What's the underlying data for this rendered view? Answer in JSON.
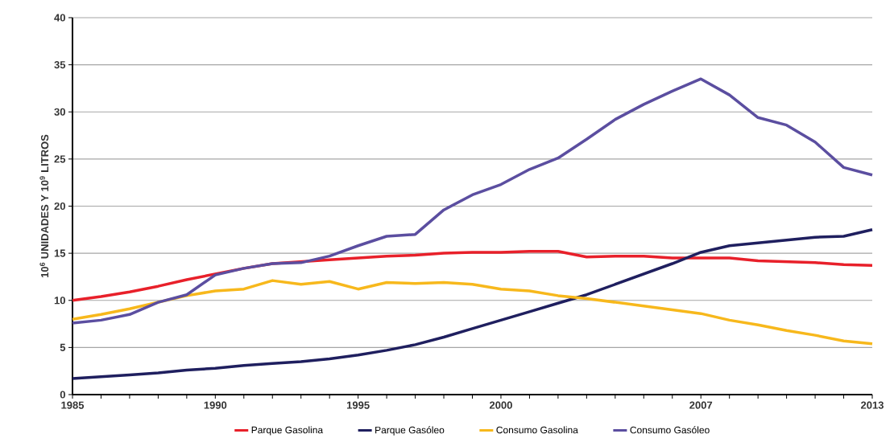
{
  "chart_data": {
    "type": "line",
    "ylabel": "10$^{6}$ UNIDADES Y 10$^{9}$ LITROS",
    "x": [
      1985,
      1986,
      1987,
      1988,
      1989,
      1990,
      1991,
      1992,
      1993,
      1994,
      1995,
      1996,
      1997,
      1998,
      1999,
      2000,
      2001,
      2002,
      2003,
      2004,
      2005,
      2006,
      2007,
      2008,
      2009,
      2010,
      2011,
      2012,
      2013
    ],
    "series": [
      {
        "name": "Parque Gasolina",
        "color": "#e8202a",
        "values": [
          10.0,
          10.4,
          10.9,
          11.5,
          12.2,
          12.8,
          13.4,
          13.9,
          14.1,
          14.3,
          14.5,
          14.7,
          14.8,
          15.0,
          15.1,
          15.1,
          15.2,
          15.2,
          14.6,
          14.7,
          14.7,
          14.5,
          14.5,
          14.5,
          14.2,
          14.1,
          14.0,
          13.8,
          13.7
        ]
      },
      {
        "name": "Parque Gasóleo",
        "color": "#1f1f5f",
        "values": [
          1.7,
          1.9,
          2.1,
          2.3,
          2.6,
          2.8,
          3.1,
          3.3,
          3.5,
          3.8,
          4.2,
          4.7,
          5.3,
          6.1,
          7.0,
          7.9,
          8.8,
          9.7,
          10.6,
          11.7,
          12.8,
          13.9,
          15.1,
          15.8,
          16.1,
          16.4,
          16.7,
          16.8,
          17.5
        ]
      },
      {
        "name": "Consumo Gasolina",
        "color": "#f7b81c",
        "values": [
          8.0,
          8.5,
          9.1,
          9.8,
          10.5,
          11.0,
          11.2,
          12.1,
          11.7,
          12.0,
          11.2,
          11.9,
          11.8,
          11.9,
          11.7,
          11.2,
          11.0,
          10.5,
          10.2,
          9.8,
          9.4,
          9.0,
          8.6,
          7.9,
          7.4,
          6.8,
          6.3,
          5.7,
          5.4
        ]
      },
      {
        "name": "Consumo Gasóleo",
        "color": "#5b4ea0",
        "values": [
          7.6,
          7.9,
          8.5,
          9.8,
          10.6,
          12.7,
          13.4,
          13.9,
          14.0,
          14.7,
          15.8,
          16.8,
          17.0,
          19.6,
          21.2,
          22.3,
          23.9,
          25.1,
          27.1,
          29.2,
          30.8,
          32.2,
          33.5,
          31.8,
          29.4,
          28.6,
          26.8,
          24.1,
          23.3
        ]
      }
    ],
    "xlim": [
      1985,
      2013
    ],
    "xticks": [
      1985,
      {
        "value": 1986,
        "label": null
      },
      {
        "value": 1987,
        "label": null
      },
      {
        "value": 1988,
        "label": null
      },
      {
        "value": 1989,
        "label": null
      },
      1990,
      {
        "value": 1991,
        "label": null
      },
      {
        "value": 1992,
        "label": null
      },
      {
        "value": 1993,
        "label": null
      },
      {
        "value": 1994,
        "label": null
      },
      1995,
      {
        "value": 1996,
        "label": null
      },
      {
        "value": 1997,
        "label": null
      },
      {
        "value": 1998,
        "label": null
      },
      {
        "value": 1999,
        "label": null
      },
      2000,
      {
        "value": 2001,
        "label": null
      },
      {
        "value": 2002,
        "label": null
      },
      {
        "value": 2003,
        "label": null
      },
      {
        "value": 2004,
        "label": null
      },
      {
        "value": 2005,
        "label": null
      },
      {
        "value": 2006,
        "label": null
      },
      2007,
      {
        "value": 2008,
        "label": null
      },
      {
        "value": 2009,
        "label": null
      },
      {
        "value": 2010,
        "label": null
      },
      {
        "value": 2011,
        "label": null
      },
      {
        "value": 2012,
        "label": null
      },
      2013
    ],
    "ylim": [
      0,
      40
    ],
    "yticks": [
      0,
      5,
      10,
      15,
      20,
      25,
      30,
      35,
      40
    ],
    "grid": "y",
    "legend": "bottom",
    "marker": "none",
    "line_style": "solid"
  }
}
